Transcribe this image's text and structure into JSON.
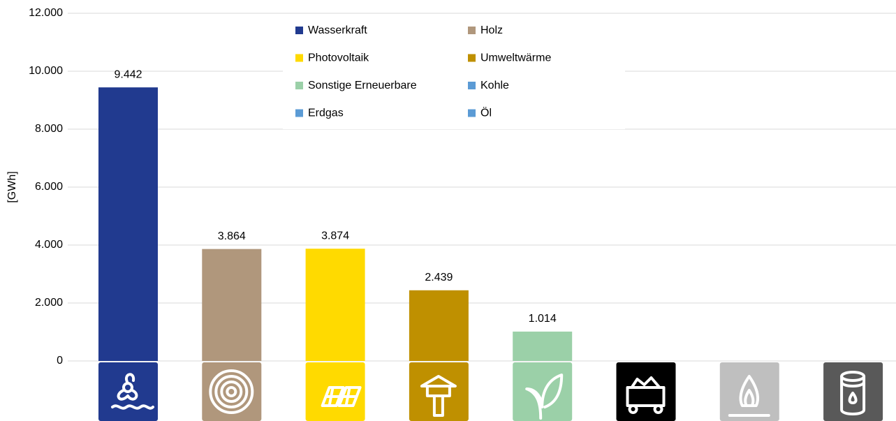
{
  "chart_data": {
    "type": "bar",
    "y_label": "[GWh]",
    "categories": [
      "Wasserkraft",
      "Holz",
      "Photovoltaik",
      "Umweltwärme",
      "Sonstige Erneuerbare",
      "Kohle",
      "Erdgas",
      "Öl"
    ],
    "values": [
      9442,
      3864,
      3874,
      2439,
      1014,
      null,
      null,
      null
    ],
    "value_labels": [
      "9.442",
      "3.864",
      "3.874",
      "2.439",
      "1.014",
      null,
      null,
      null
    ],
    "colors": [
      "#213a8f",
      "#b0977c",
      "#ffda00",
      "#bf9000",
      "#9bd0a8",
      "#5b9bd5",
      "#5b9bd5",
      "#5b9bd5"
    ],
    "icon_colors": [
      "#213a8f",
      "#b0977c",
      "#ffda00",
      "#bf9000",
      "#9bd0a8",
      "#000000",
      "#bfbfbf",
      "#595959"
    ],
    "ylim": [
      0,
      12000
    ],
    "yticks": [
      0,
      {
        "value": 2000,
        "label": "2.000"
      },
      {
        "value": 4000,
        "label": "4.000"
      },
      {
        "value": 6000,
        "label": "6.000"
      },
      {
        "value": 8000,
        "label": "8.000"
      },
      {
        "value": 10000,
        "label": "10.000"
      },
      {
        "value": 12000,
        "label": "12.000"
      }
    ],
    "grid": true,
    "legend": "top"
  }
}
